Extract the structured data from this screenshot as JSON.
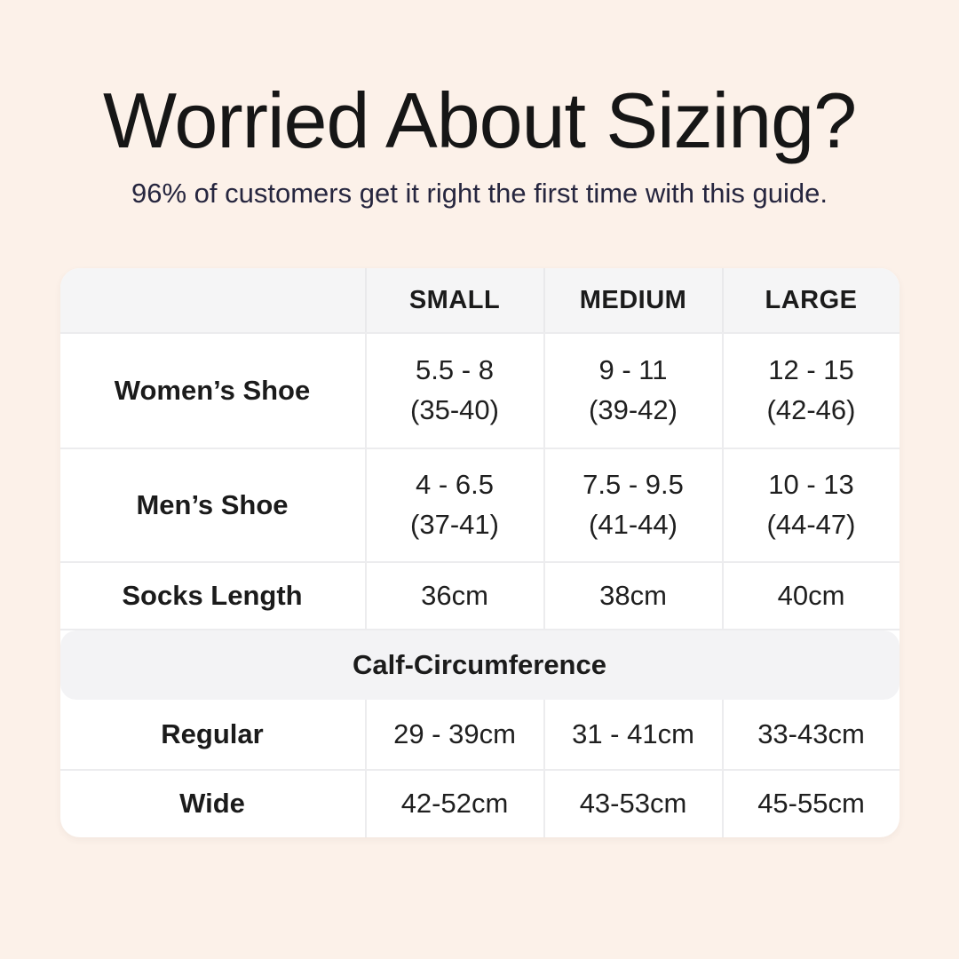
{
  "header": {
    "title": "Worried About Sizing?",
    "subtitle": "96% of customers get it right the first time with this guide."
  },
  "table": {
    "columns": [
      "SMALL",
      "MEDIUM",
      "LARGE"
    ],
    "shoe_rows": [
      {
        "label": "Women’s Shoe",
        "small": [
          "5.5 - 8",
          "(35-40)"
        ],
        "medium": [
          "9 - 11",
          "(39-42)"
        ],
        "large": [
          "12 - 15",
          "(42-46)"
        ]
      },
      {
        "label": "Men’s Shoe",
        "small": [
          "4 - 6.5",
          "(37-41)"
        ],
        "medium": [
          "7.5 - 9.5",
          "(41-44)"
        ],
        "large": [
          "10 - 13",
          "(44-47)"
        ]
      }
    ],
    "socks_row": {
      "label": "Socks Length",
      "small": "36cm",
      "medium": "38cm",
      "large": "40cm"
    },
    "section_header": "Calf-Circumference",
    "calf_rows": [
      {
        "label": "Regular",
        "small": "29 - 39cm",
        "medium": "31 - 41cm",
        "large": "33-43cm"
      },
      {
        "label": "Wide",
        "small": "42-52cm",
        "medium": "43-53cm",
        "large": "45-55cm"
      }
    ]
  },
  "colors": {
    "page_background": "#fcf1e9",
    "card_background": "#ffffff",
    "band_background": "#f4f4f6",
    "grid_line": "#ececee",
    "title_text": "#161616",
    "subtitle_text": "#26263f",
    "body_text": "#1f1f1f"
  },
  "chart_data": {
    "type": "table",
    "title": "Worried About Sizing?",
    "subtitle": "96% of customers get it right the first time with this guide.",
    "columns": [
      "",
      "SMALL",
      "MEDIUM",
      "LARGE"
    ],
    "rows": [
      [
        "Women’s Shoe",
        "5.5 - 8 (35-40)",
        "9 - 11 (39-42)",
        "12 - 15 (42-46)"
      ],
      [
        "Men’s Shoe",
        "4 - 6.5 (37-41)",
        "7.5 - 9.5 (41-44)",
        "10 - 13 (44-47)"
      ],
      [
        "Socks Length",
        "36cm",
        "38cm",
        "40cm"
      ],
      [
        "Calf-Circumference",
        "",
        "",
        ""
      ],
      [
        "Regular",
        "29 - 39cm",
        "31 - 41cm",
        "33-43cm"
      ],
      [
        "Wide",
        "42-52cm",
        "43-53cm",
        "45-55cm"
      ]
    ],
    "layout_hints": {
      "section_row_index": 3,
      "grid": true,
      "header_background": "#f5f5f6"
    }
  }
}
